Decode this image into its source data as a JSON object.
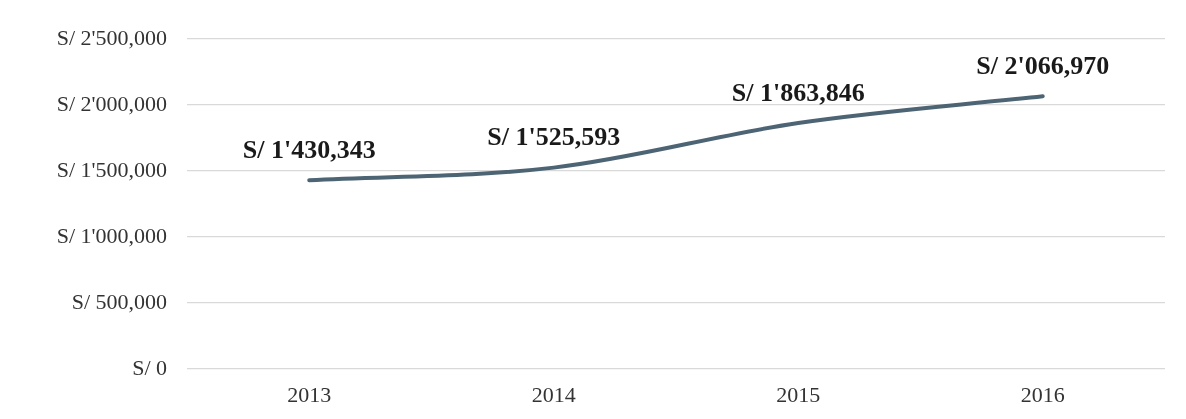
{
  "chart_data": {
    "type": "line",
    "categories": [
      "2013",
      "2014",
      "2015",
      "2016"
    ],
    "series": [
      {
        "color": "#4d6474",
        "values": [
          1430343,
          1525593,
          1863846,
          2066970
        ],
        "value_labels": [
          "S/ 1'430,343",
          "S/ 1'525,593",
          "S/ 1'863,846",
          "S/ 2'066,970"
        ]
      }
    ],
    "ylim": [
      0,
      2500000
    ],
    "yticks": [
      {
        "value": 0,
        "label": "S/ 0"
      },
      {
        "value": 500000,
        "label": "S/ 500,000"
      },
      {
        "value": 1000000,
        "label": "S/ 1'000,000"
      },
      {
        "value": 1500000,
        "label": "S/ 1'500,000"
      },
      {
        "value": 2000000,
        "label": "S/ 2'000,000"
      },
      {
        "value": 2500000,
        "label": "S/ 2'500,000"
      }
    ],
    "grid": "y",
    "marker": "none"
  }
}
